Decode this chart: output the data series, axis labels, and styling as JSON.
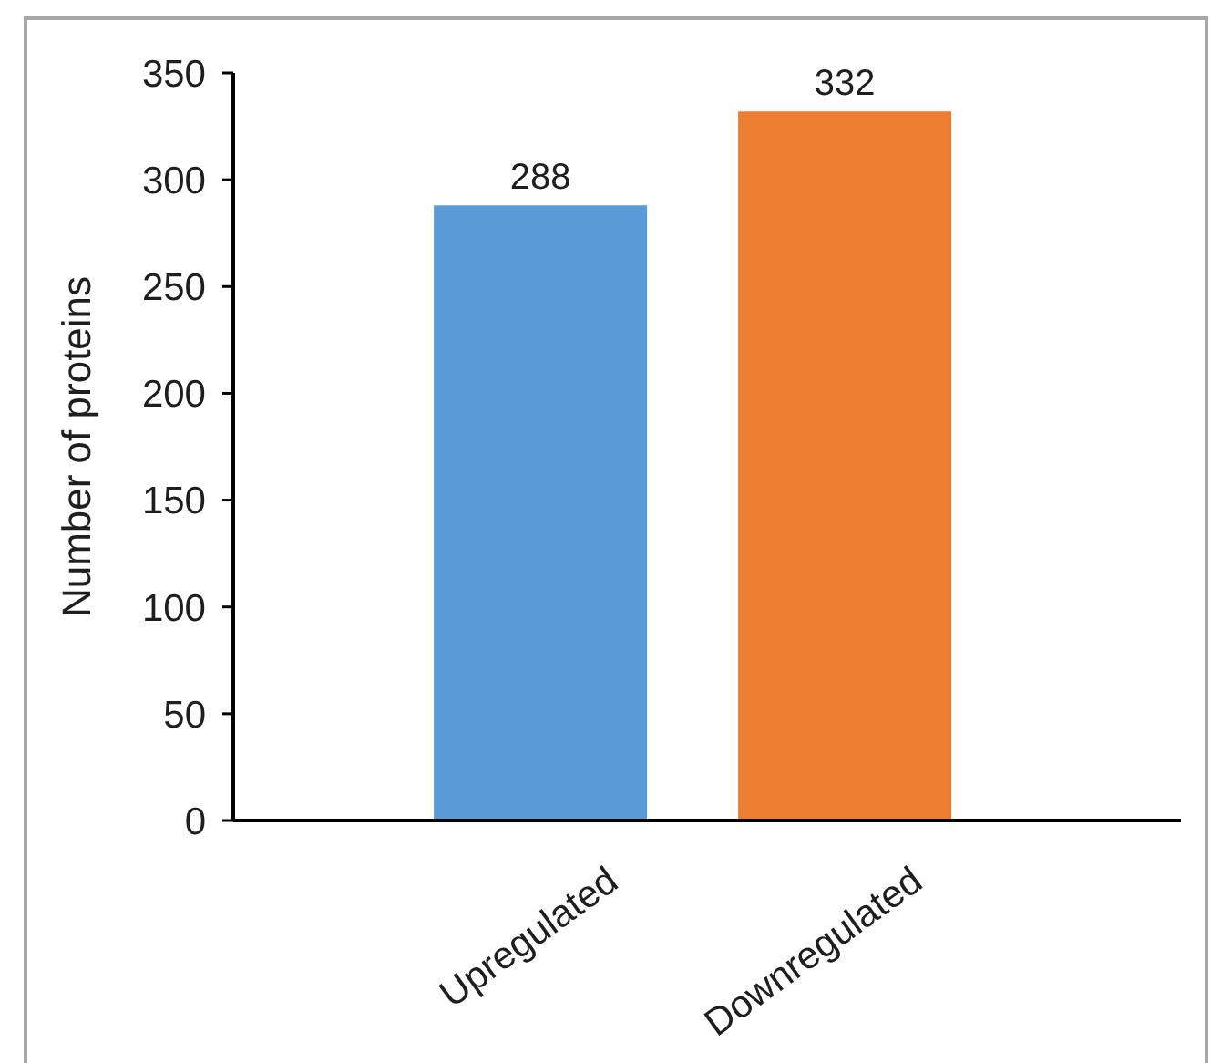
{
  "chart_data": {
    "type": "bar",
    "categories": [
      "Upregulated",
      "Downregulated"
    ],
    "values": [
      288,
      332
    ],
    "colors": [
      "#5b9bd5",
      "#ed7d31"
    ],
    "ylabel": "Number of proteins",
    "ylim": [
      0,
      350
    ],
    "yticks": [
      0,
      50,
      100,
      150,
      200,
      250,
      300,
      350
    ],
    "data_labels": true
  }
}
